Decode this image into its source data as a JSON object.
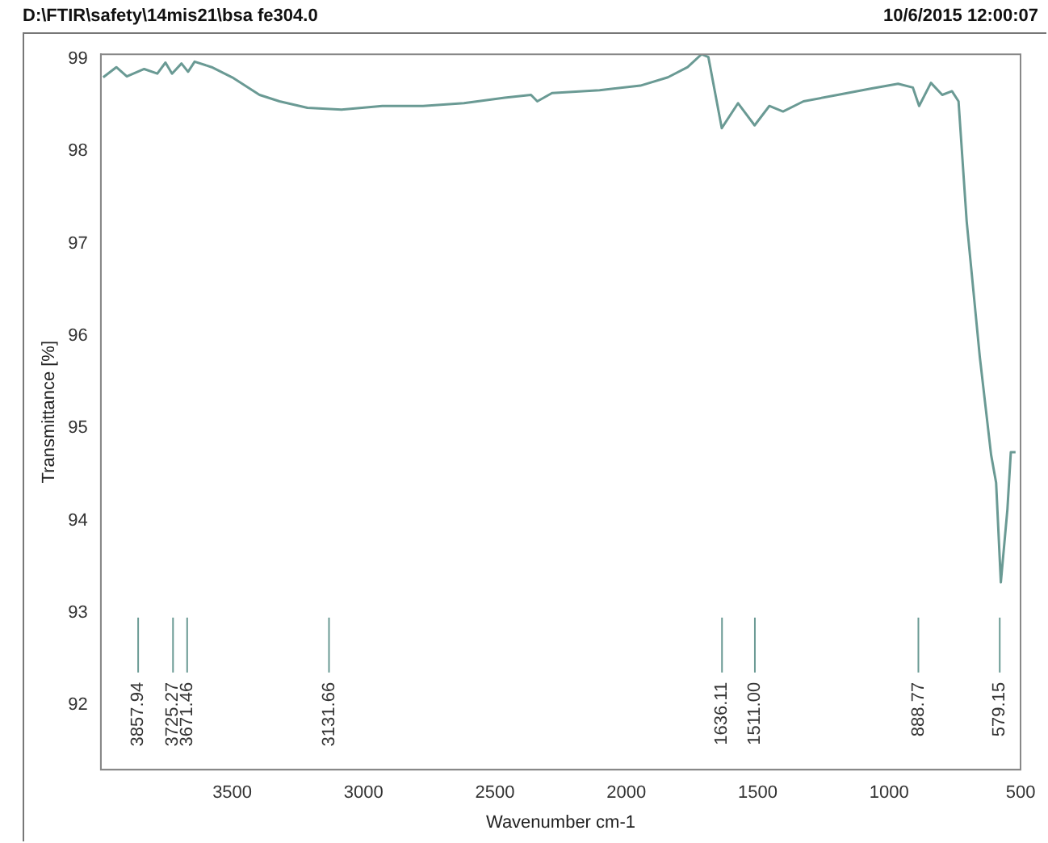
{
  "chart_data": {
    "type": "line",
    "title": "D:\\FTIR\\safety\\14mis21\\bsa fe304.0",
    "subtitle": "10/6/2015  12:00:07",
    "xlabel": "Wavenumber cm-1",
    "ylabel": "Transmittance [%]",
    "xlim": [
      4000,
      500
    ],
    "xticks": [
      3500,
      3000,
      2500,
      2000,
      1500,
      1000,
      500
    ],
    "ylim": [
      91.3,
      99.05
    ],
    "yticks": [
      92,
      93,
      94,
      95,
      96,
      97,
      98,
      99
    ],
    "grid": false,
    "legend": false,
    "marker": "none",
    "line_style": "solid",
    "series": [
      {
        "color": "#6a9a94",
        "x": [
          3991,
          3941,
          3901,
          3835,
          3785,
          3754,
          3729,
          3693,
          3668,
          3643,
          3578,
          3500,
          3396,
          3320,
          3214,
          3084,
          2929,
          2774,
          2618,
          2463,
          2363,
          2339,
          2283,
          2102,
          1947,
          1842,
          1767,
          1714,
          1688,
          1637,
          1575,
          1512,
          1456,
          1404,
          1326,
          1196,
          1066,
          966,
          910,
          886,
          841,
          798,
          761,
          736,
          705,
          655,
          612,
          593,
          575,
          550,
          537,
          519
        ],
        "values": [
          98.8,
          98.91,
          98.81,
          98.89,
          98.84,
          98.96,
          98.84,
          98.95,
          98.86,
          98.97,
          98.91,
          98.8,
          98.61,
          98.54,
          98.47,
          98.45,
          98.49,
          98.49,
          98.52,
          98.58,
          98.61,
          98.54,
          98.63,
          98.66,
          98.71,
          98.8,
          98.91,
          99.05,
          99.02,
          98.25,
          98.52,
          98.28,
          98.49,
          98.43,
          98.54,
          98.61,
          98.68,
          98.73,
          98.69,
          98.49,
          98.74,
          98.61,
          98.65,
          98.54,
          97.24,
          95.77,
          94.71,
          94.41,
          93.33,
          94.12,
          94.74,
          94.74
        ]
      }
    ],
    "annotations": [
      "3857.94",
      "3725.27",
      "3671.46",
      "3131.66",
      "1636.11",
      "1511.00",
      "888.77",
      "579.15"
    ]
  }
}
